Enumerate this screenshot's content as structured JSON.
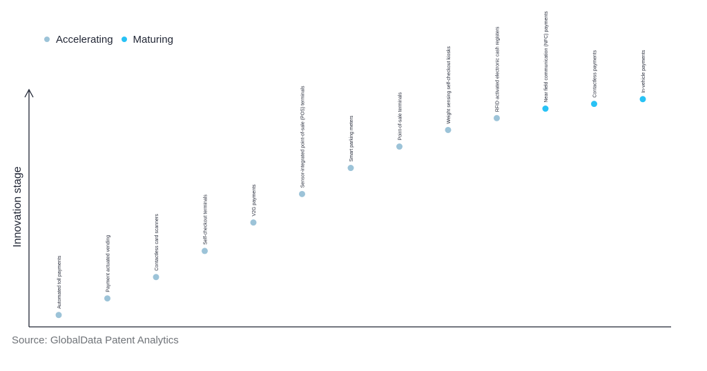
{
  "legend": {
    "accelerating_label": "Accelerating",
    "maturing_label": "Maturing"
  },
  "colors": {
    "accelerating": "#9cc3d8",
    "maturing": "#28c2f5",
    "axis": "#1f2433",
    "label": "#1f2433"
  },
  "source": "Source: GlobalData Patent Analytics",
  "chart_data": {
    "type": "scatter",
    "title": "",
    "xlabel": "",
    "ylabel": "Innovation stage",
    "grid": false,
    "legend_position": "top-left",
    "series": [
      {
        "name": "Accelerating",
        "color_key": "accelerating"
      },
      {
        "name": "Maturing",
        "color_key": "maturing"
      }
    ],
    "points": [
      {
        "label": "Automated toll payments",
        "y": 5,
        "series": "Accelerating"
      },
      {
        "label": "Payment actuated vending",
        "y": 12,
        "series": "Accelerating"
      },
      {
        "label": "Contactless card scanners",
        "y": 21,
        "series": "Accelerating"
      },
      {
        "label": "Self-checkout terminals",
        "y": 32,
        "series": "Accelerating"
      },
      {
        "label": "V2G payments",
        "y": 44,
        "series": "Accelerating"
      },
      {
        "label": "Sensor-integrated point-of-sale (POS) terminals",
        "y": 56,
        "series": "Accelerating"
      },
      {
        "label": "Smart parking meters",
        "y": 67,
        "series": "Accelerating"
      },
      {
        "label": "Point-of-sale terminals",
        "y": 76,
        "series": "Accelerating"
      },
      {
        "label": "Weight sensing self-checkout kiosks",
        "y": 83,
        "series": "Accelerating"
      },
      {
        "label": "RFID activated electronic cash registers",
        "y": 88,
        "series": "Accelerating"
      },
      {
        "label": "Near field communication (NFC) payments",
        "y": 92,
        "series": "Maturing"
      },
      {
        "label": "Contactless payments",
        "y": 94,
        "series": "Maturing"
      },
      {
        "label": "In-vehicle payments",
        "y": 96,
        "series": "Maturing"
      }
    ],
    "ylim": [
      0,
      100
    ]
  }
}
